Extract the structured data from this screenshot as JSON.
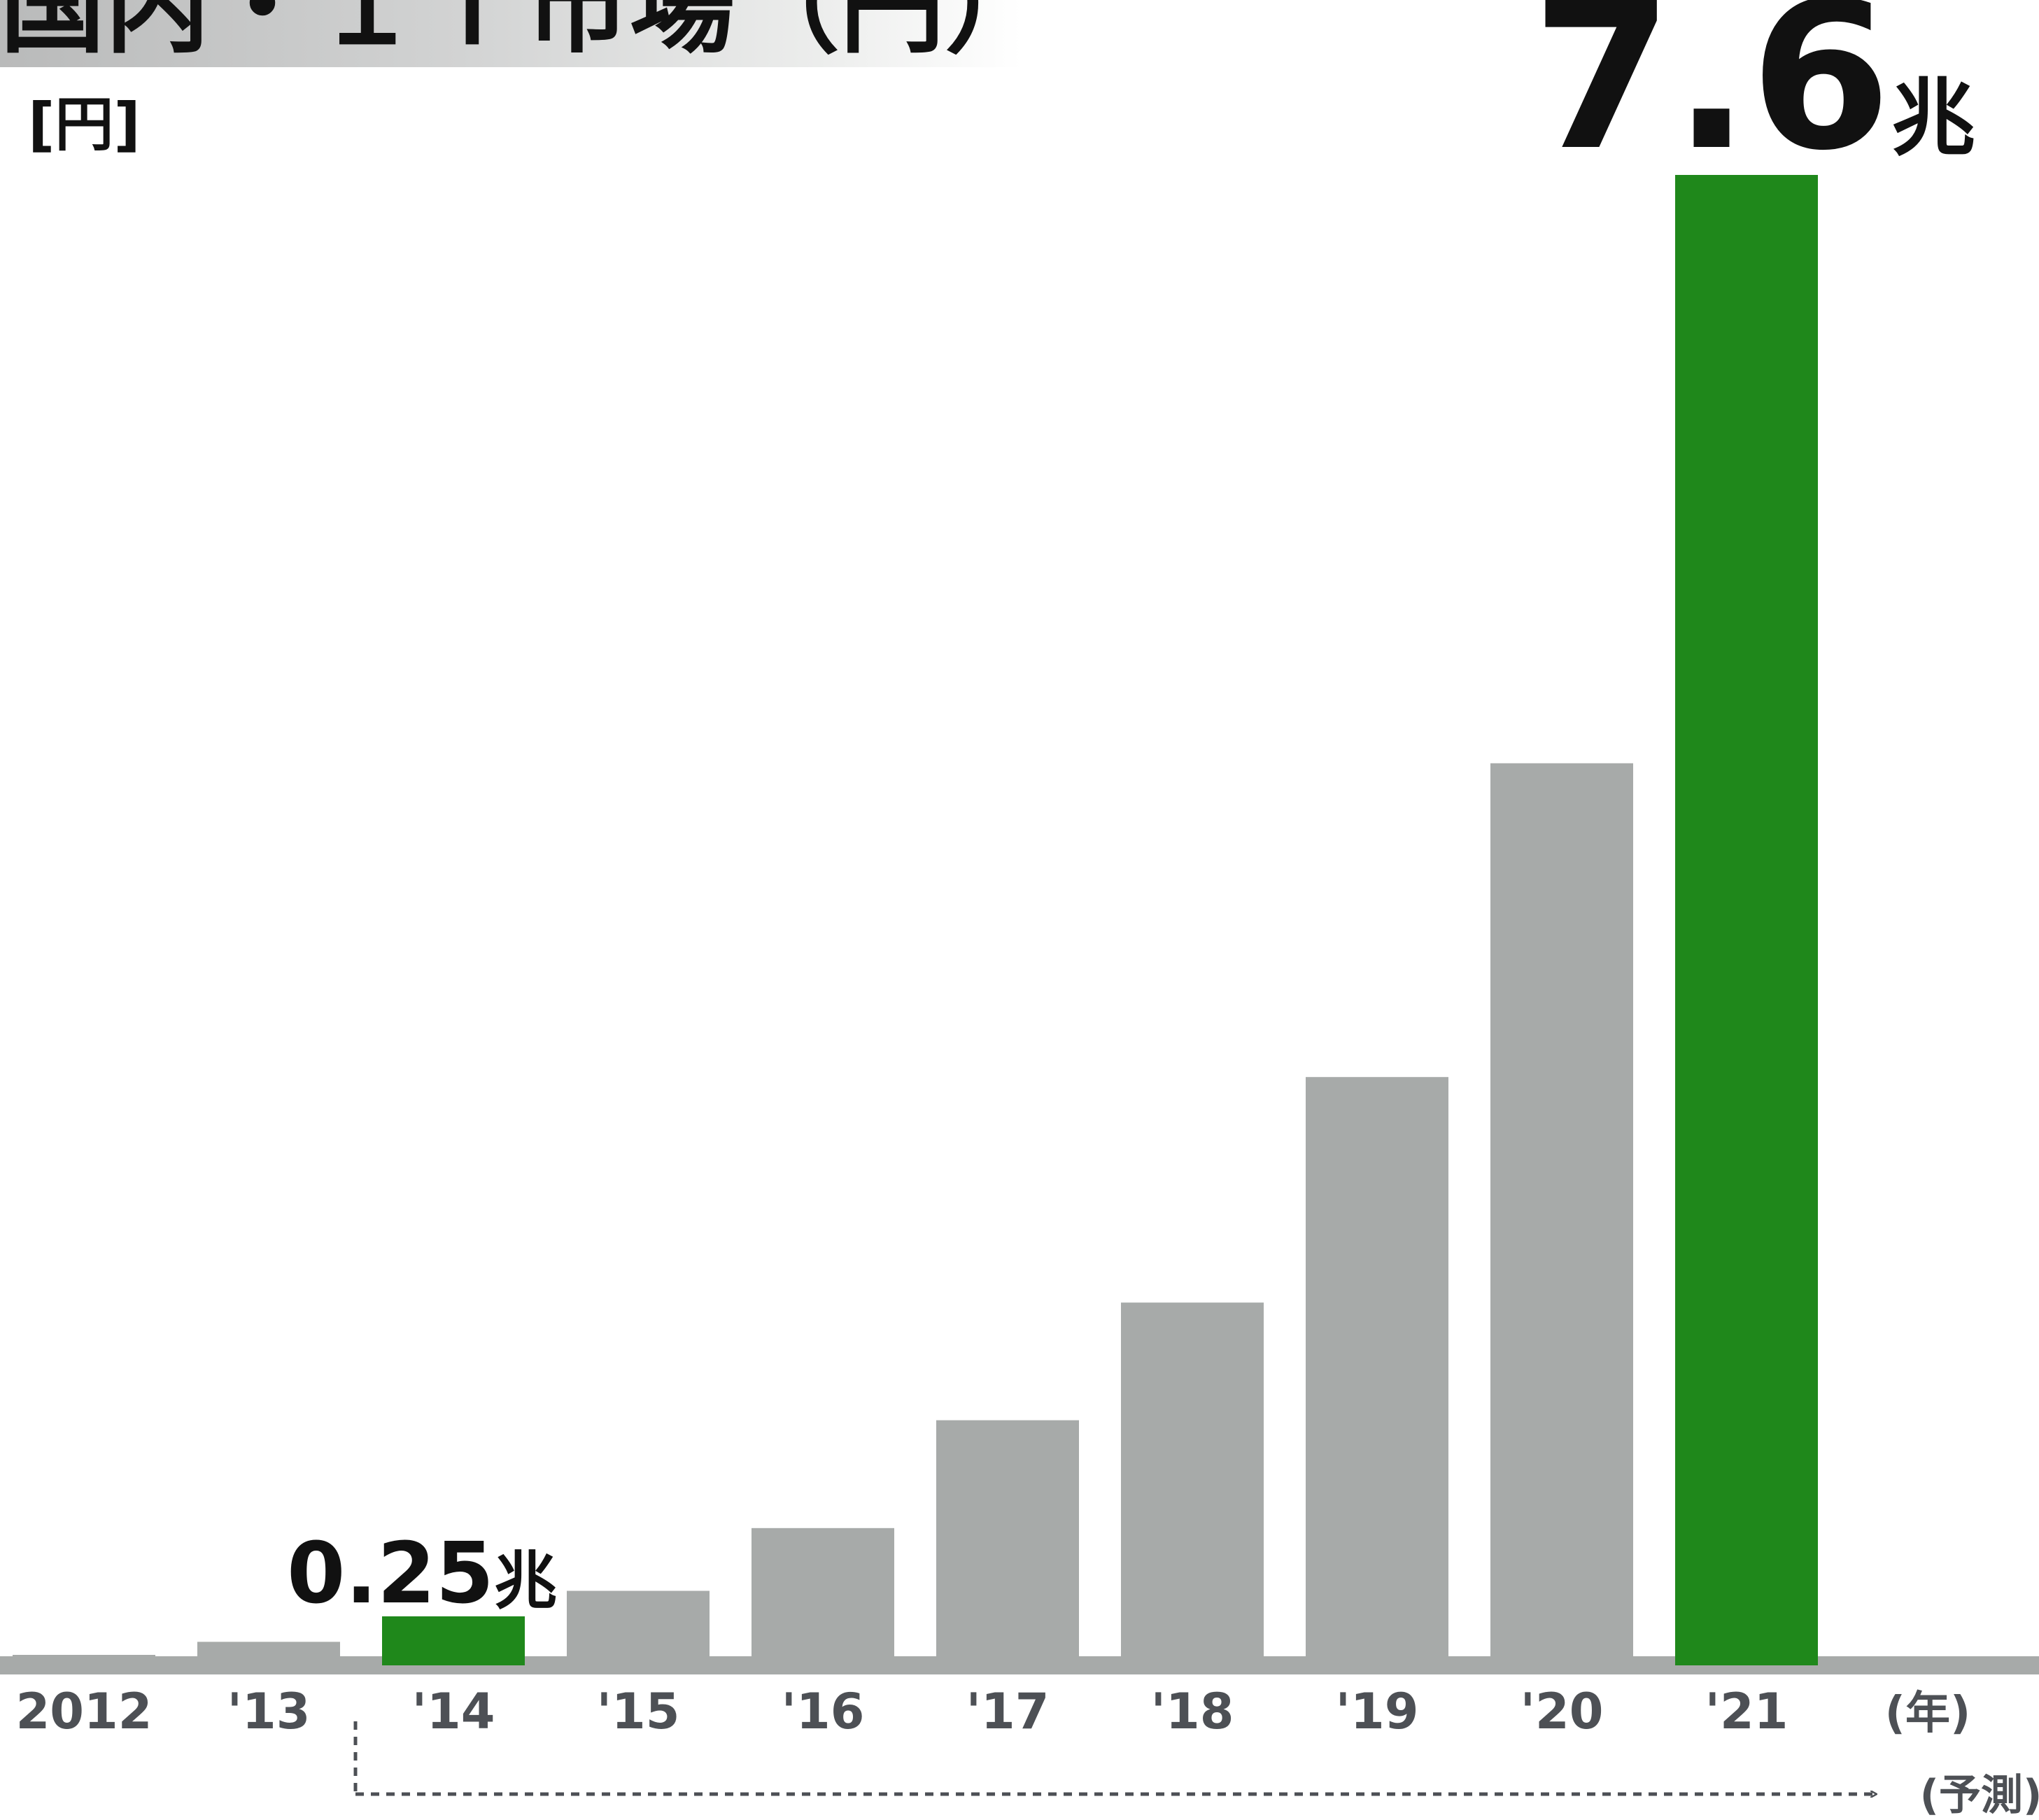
{
  "title": "国内・ＩＴ市場（円）",
  "unit_label": "[円]",
  "colors": {
    "highlight": "#1f881b",
    "regular": "#a7aaa9",
    "baseline": "#a7aaa9",
    "tick_text": "#4d5055",
    "label_text": "#111111"
  },
  "chart_data": {
    "type": "bar",
    "categories": [
      "2012",
      "'13",
      "'14",
      "'15",
      "'16",
      "'17",
      "'18",
      "'19",
      "'20",
      "'21"
    ],
    "values": [
      0.01,
      0.12,
      0.25,
      0.38,
      0.7,
      1.25,
      1.85,
      3.0,
      4.6,
      7.6
    ],
    "highlighted": [
      "'14",
      "'21"
    ],
    "x_unit": "(年)",
    "forecast_label": "(予測)",
    "forecast_from": "'14",
    "annotations": [
      {
        "category": "'14",
        "number": "0.25",
        "unit": "兆"
      },
      {
        "category": "'21",
        "number": "7.6",
        "unit": "兆"
      }
    ],
    "ylim": [
      0,
      7.6
    ],
    "grid": false,
    "legend": "none"
  }
}
